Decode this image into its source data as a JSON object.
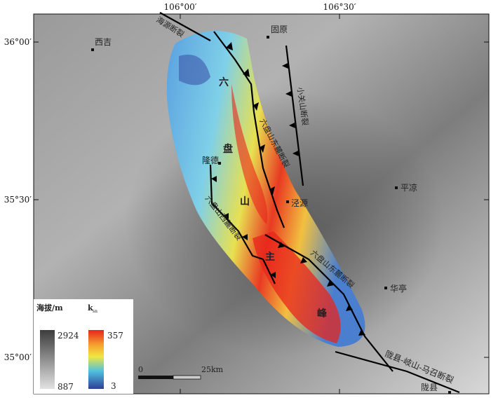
{
  "axes": {
    "lon_ticks": [
      "106°00′",
      "106°30′"
    ],
    "lat_ticks": [
      "36°00′",
      "35°30′",
      "35°00′"
    ]
  },
  "places": {
    "xiji": "西吉",
    "guyuan": "固原",
    "longde": "隆德",
    "jingyuan": "泾源",
    "pingliang": "平凉",
    "huating": "华亭",
    "longxian": "陇县"
  },
  "faults": {
    "haiyuan": "海源断裂",
    "xiaoguanshan": "小关山断裂",
    "east_lps_north": "六盘山东麓断裂",
    "west_lps": "六盘山西麓断裂",
    "east_lps_south": "六盘山东麓断裂",
    "longxian_qishan": "陇县-岐山-马召断裂"
  },
  "range_label": [
    "六",
    "盘",
    "山",
    "主",
    "峰"
  ],
  "legend": {
    "elevation_title": "海拔/m",
    "elevation_max": "2924",
    "elevation_min": "887",
    "ksn_title": "k",
    "ksn_sub": "sn",
    "ksn_max": "357",
    "ksn_min": "3"
  },
  "scale_bar": {
    "start": "0",
    "end": "25km"
  },
  "colors": {
    "ksn_high": "#e8241c",
    "ksn_mid": "#f0e640",
    "ksn_low": "#2e3f95",
    "elev_high": "#3c3c3c",
    "elev_low": "#e2e2e2"
  }
}
